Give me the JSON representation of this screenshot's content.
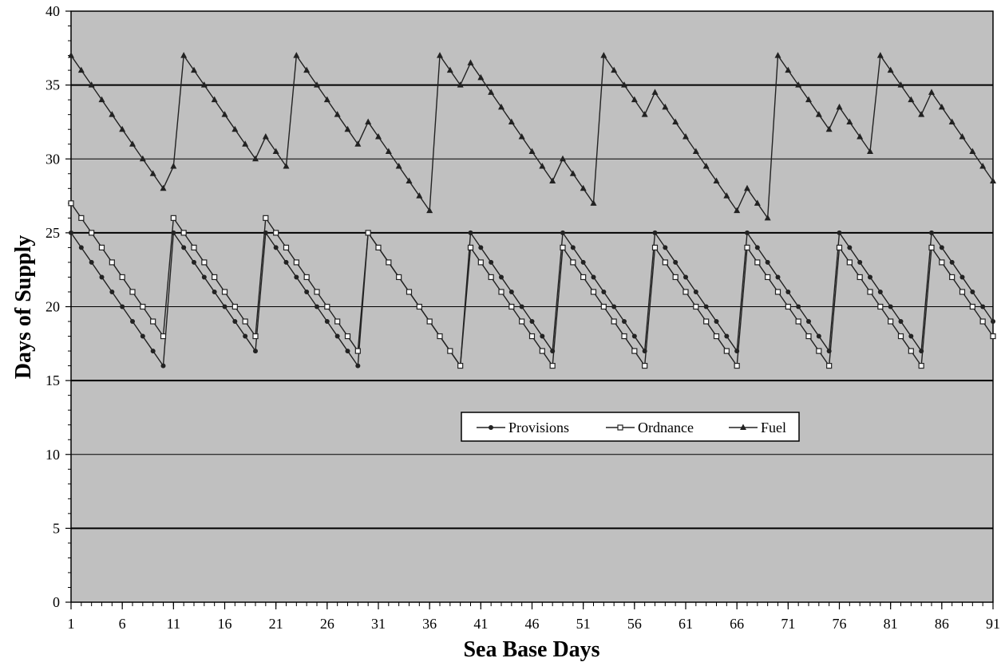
{
  "chart_data": {
    "type": "line",
    "xlabel": "Sea Base Days",
    "ylabel": "Days of Supply",
    "xlim": [
      1,
      91
    ],
    "ylim": [
      0,
      40
    ],
    "x_ticks": [
      1,
      6,
      11,
      16,
      21,
      26,
      31,
      36,
      41,
      46,
      51,
      56,
      61,
      66,
      71,
      76,
      81,
      86,
      91
    ],
    "y_ticks": [
      0,
      5,
      10,
      15,
      20,
      25,
      30,
      35,
      40
    ],
    "grid": true,
    "plot_background": "#c0c0c0",
    "line_color": "#222222",
    "legend_position": "center-right",
    "x": [
      1,
      2,
      3,
      4,
      5,
      6,
      7,
      8,
      9,
      10,
      11,
      12,
      13,
      14,
      15,
      16,
      17,
      18,
      19,
      20,
      21,
      22,
      23,
      24,
      25,
      26,
      27,
      28,
      29,
      30,
      31,
      32,
      33,
      34,
      35,
      36,
      37,
      38,
      39,
      40,
      41,
      42,
      43,
      44,
      45,
      46,
      47,
      48,
      49,
      50,
      51,
      52,
      53,
      54,
      55,
      56,
      57,
      58,
      59,
      60,
      61,
      62,
      63,
      64,
      65,
      66,
      67,
      68,
      69,
      70,
      71,
      72,
      73,
      74,
      75,
      76,
      77,
      78,
      79,
      80,
      81,
      82,
      83,
      84,
      85,
      86,
      87,
      88,
      89,
      90,
      91
    ],
    "series": [
      {
        "name": "Provisions",
        "marker": "circle",
        "values": [
          25,
          24,
          23,
          22,
          21,
          20,
          19,
          18,
          17,
          16,
          25,
          24,
          23,
          22,
          21,
          20,
          19,
          18,
          17,
          25,
          24,
          23,
          22,
          21,
          20,
          19,
          18,
          17,
          16,
          25,
          24,
          23,
          22,
          21,
          20,
          19,
          18,
          17,
          16,
          25,
          24,
          23,
          22,
          21,
          20,
          19,
          18,
          17,
          25,
          24,
          23,
          22,
          21,
          20,
          19,
          18,
          17,
          25,
          24,
          23,
          22,
          21,
          20,
          19,
          18,
          17,
          25,
          24,
          23,
          22,
          21,
          20,
          19,
          18,
          17,
          25,
          24,
          23,
          22,
          21,
          20,
          19,
          18,
          17,
          25,
          24,
          23,
          22,
          21,
          20,
          19
        ]
      },
      {
        "name": "Ordnance",
        "marker": "square",
        "values": [
          27,
          26,
          25,
          24,
          23,
          22,
          21,
          20,
          19,
          18,
          26,
          25,
          24,
          23,
          22,
          21,
          20,
          19,
          18,
          26,
          25,
          24,
          23,
          22,
          21,
          20,
          19,
          18,
          17,
          25,
          24,
          23,
          22,
          21,
          20,
          19,
          18,
          17,
          16,
          24,
          23,
          22,
          21,
          20,
          19,
          18,
          17,
          16,
          24,
          23,
          22,
          21,
          20,
          19,
          18,
          17,
          16,
          24,
          23,
          22,
          21,
          20,
          19,
          18,
          17,
          16,
          24,
          23,
          22,
          21,
          20,
          19,
          18,
          17,
          16,
          24,
          23,
          22,
          21,
          20,
          19,
          18,
          17,
          16,
          24,
          23,
          22,
          21,
          20,
          19,
          18
        ]
      },
      {
        "name": "Fuel",
        "marker": "triangle",
        "values": [
          37,
          36,
          35,
          34,
          33,
          32,
          31,
          30,
          29,
          28,
          29.5,
          37,
          36,
          35,
          34,
          33,
          32,
          31,
          30,
          31.5,
          30.5,
          29.5,
          37,
          36,
          35,
          34,
          33,
          32,
          31,
          32.5,
          31.5,
          30.5,
          29.5,
          28.5,
          27.5,
          26.5,
          37,
          36,
          35,
          36.5,
          35.5,
          34.5,
          33.5,
          32.5,
          31.5,
          30.5,
          29.5,
          28.5,
          30,
          29,
          28,
          27,
          37,
          36,
          35,
          34,
          33,
          34.5,
          33.5,
          32.5,
          31.5,
          30.5,
          29.5,
          28.5,
          27.5,
          26.5,
          28,
          27,
          26,
          37,
          36,
          35,
          34,
          33,
          32,
          33.5,
          32.5,
          31.5,
          30.5,
          37,
          36,
          35,
          34,
          33,
          34.5,
          33.5,
          32.5,
          31.5,
          30.5,
          29.5,
          28.5
        ]
      }
    ]
  }
}
